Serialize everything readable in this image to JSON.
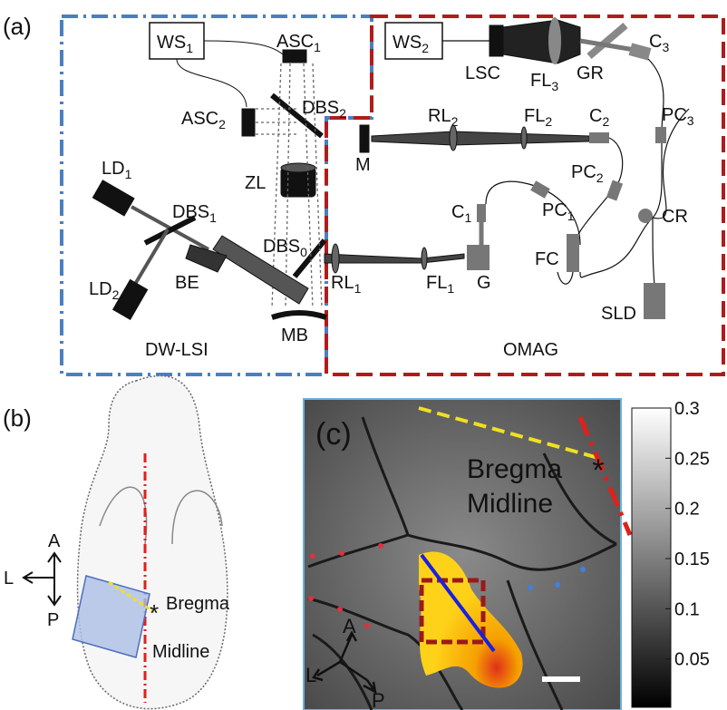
{
  "panel_labels": [
    "(a)",
    "(b)",
    "(c)"
  ],
  "a": {
    "components": [
      {
        "label": "WS",
        "sub": "1"
      },
      {
        "label": "ASC",
        "sub": "1"
      },
      {
        "label": "ASC",
        "sub": "2"
      },
      {
        "label": "DBS",
        "sub": "2"
      },
      {
        "label": "ZL"
      },
      {
        "label": "LD",
        "sub": "1"
      },
      {
        "label": "DBS",
        "sub": "1"
      },
      {
        "label": "DBS",
        "sub": "0"
      },
      {
        "label": "BE"
      },
      {
        "label": "LD",
        "sub": "2"
      },
      {
        "label": "MB"
      },
      {
        "label": "WS",
        "sub": "2"
      },
      {
        "label": "LSC"
      },
      {
        "label": "FL",
        "sub": "3"
      },
      {
        "label": "GR"
      },
      {
        "label": "C",
        "sub": "3"
      },
      {
        "label": "M"
      },
      {
        "label": "RL",
        "sub": "2"
      },
      {
        "label": "FL",
        "sub": "2"
      },
      {
        "label": "C",
        "sub": "2"
      },
      {
        "label": "PC",
        "sub": "3"
      },
      {
        "label": "PC",
        "sub": "2"
      },
      {
        "label": "PC",
        "sub": "1"
      },
      {
        "label": "C",
        "sub": "1"
      },
      {
        "label": "CR"
      },
      {
        "label": "FC"
      },
      {
        "label": "G"
      },
      {
        "label": "RL",
        "sub": "1"
      },
      {
        "label": "FL",
        "sub": "1"
      },
      {
        "label": "SLD"
      }
    ],
    "regions": [
      "DW-LSI",
      "OMAG"
    ]
  },
  "b": {
    "directions": [
      "A",
      "L",
      "P"
    ],
    "labels": [
      "Bregma",
      "Midline"
    ]
  },
  "c": {
    "labels": [
      "Bregma",
      "Midline"
    ],
    "directions": [
      "A",
      "L",
      "P"
    ],
    "colorbar": {
      "lim": [
        0,
        0.3
      ],
      "ticks": [
        0.3,
        0.25,
        0.2,
        0.15,
        0.1,
        0.05
      ]
    }
  }
}
